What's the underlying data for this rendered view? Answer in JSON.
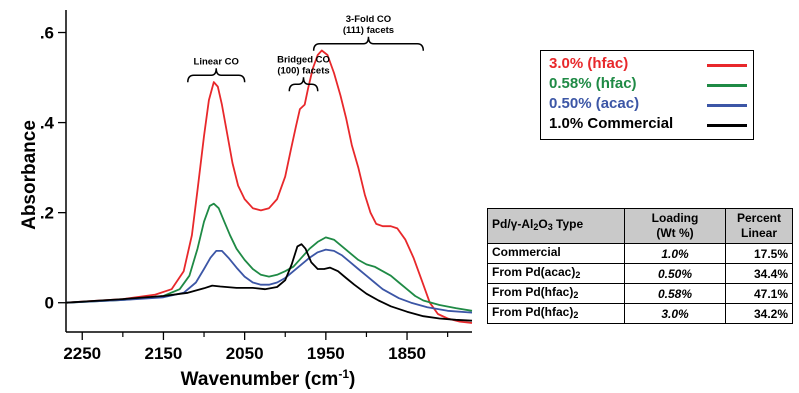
{
  "chart_data": {
    "type": "line",
    "xlabel_main": "Wavenumber (cm",
    "xlabel_sup": "-1",
    "xlabel_end": ")",
    "ylabel": "Absorbance",
    "xlim": [
      2270,
      1770
    ],
    "ylim": [
      -0.065,
      0.65
    ],
    "x_reversed": true,
    "x_ticks": [
      2250,
      2150,
      2050,
      1950,
      1850
    ],
    "x_minor_ticks": [
      2200,
      2100,
      2000,
      1900,
      1800
    ],
    "y_ticks": [
      0,
      0.2,
      0.4,
      0.6
    ],
    "y_tick_labels": [
      "0",
      ".2",
      ".4",
      ".6"
    ],
    "grid": false,
    "annotations": [
      {
        "lines": [
          "Linear CO"
        ],
        "bracket_x": [
          2120,
          2050
        ],
        "bracket_y": 0.505
      },
      {
        "lines": [
          "Bridged CO",
          "(100) facets"
        ],
        "bracket_x": [
          1995,
          1960
        ],
        "bracket_y": 0.485
      },
      {
        "lines": [
          "3-Fold CO",
          "(111) facets"
        ],
        "bracket_x": [
          1965,
          1830
        ],
        "bracket_y": 0.575
      }
    ],
    "series": [
      {
        "name": "3.0% (hfac)",
        "color": "#e8282b",
        "points": [
          [
            2270,
            0.0
          ],
          [
            2200,
            0.008
          ],
          [
            2160,
            0.018
          ],
          [
            2140,
            0.03
          ],
          [
            2125,
            0.07
          ],
          [
            2115,
            0.15
          ],
          [
            2108,
            0.25
          ],
          [
            2100,
            0.37
          ],
          [
            2094,
            0.45
          ],
          [
            2088,
            0.49
          ],
          [
            2083,
            0.48
          ],
          [
            2078,
            0.44
          ],
          [
            2072,
            0.38
          ],
          [
            2065,
            0.31
          ],
          [
            2058,
            0.26
          ],
          [
            2050,
            0.23
          ],
          [
            2040,
            0.21
          ],
          [
            2030,
            0.205
          ],
          [
            2020,
            0.21
          ],
          [
            2010,
            0.23
          ],
          [
            2000,
            0.28
          ],
          [
            1993,
            0.34
          ],
          [
            1987,
            0.39
          ],
          [
            1982,
            0.43
          ],
          [
            1976,
            0.44
          ],
          [
            1972,
            0.475
          ],
          [
            1966,
            0.52
          ],
          [
            1960,
            0.55
          ],
          [
            1955,
            0.56
          ],
          [
            1948,
            0.55
          ],
          [
            1940,
            0.51
          ],
          [
            1932,
            0.46
          ],
          [
            1925,
            0.41
          ],
          [
            1918,
            0.35
          ],
          [
            1910,
            0.3
          ],
          [
            1902,
            0.24
          ],
          [
            1895,
            0.2
          ],
          [
            1888,
            0.175
          ],
          [
            1880,
            0.17
          ],
          [
            1870,
            0.17
          ],
          [
            1862,
            0.165
          ],
          [
            1852,
            0.14
          ],
          [
            1842,
            0.1
          ],
          [
            1832,
            0.05
          ],
          [
            1822,
            0.0
          ],
          [
            1812,
            -0.025
          ],
          [
            1800,
            -0.035
          ],
          [
            1785,
            -0.042
          ],
          [
            1770,
            -0.045
          ]
        ]
      },
      {
        "name": "0.58% (hfac)",
        "color": "#1f8a45",
        "points": [
          [
            2270,
            0.0
          ],
          [
            2200,
            0.006
          ],
          [
            2150,
            0.015
          ],
          [
            2130,
            0.03
          ],
          [
            2118,
            0.06
          ],
          [
            2108,
            0.12
          ],
          [
            2100,
            0.18
          ],
          [
            2093,
            0.215
          ],
          [
            2088,
            0.22
          ],
          [
            2082,
            0.21
          ],
          [
            2075,
            0.18
          ],
          [
            2068,
            0.15
          ],
          [
            2060,
            0.12
          ],
          [
            2050,
            0.095
          ],
          [
            2040,
            0.075
          ],
          [
            2030,
            0.062
          ],
          [
            2020,
            0.058
          ],
          [
            2010,
            0.062
          ],
          [
            2000,
            0.07
          ],
          [
            1990,
            0.08
          ],
          [
            1980,
            0.1
          ],
          [
            1970,
            0.12
          ],
          [
            1960,
            0.135
          ],
          [
            1950,
            0.145
          ],
          [
            1940,
            0.14
          ],
          [
            1930,
            0.125
          ],
          [
            1920,
            0.11
          ],
          [
            1910,
            0.095
          ],
          [
            1900,
            0.085
          ],
          [
            1890,
            0.08
          ],
          [
            1880,
            0.07
          ],
          [
            1870,
            0.06
          ],
          [
            1860,
            0.045
          ],
          [
            1850,
            0.03
          ],
          [
            1840,
            0.015
          ],
          [
            1830,
            0.005
          ],
          [
            1810,
            -0.005
          ],
          [
            1790,
            -0.012
          ],
          [
            1770,
            -0.018
          ]
        ]
      },
      {
        "name": "0.50% (acac)",
        "color": "#3c56a6",
        "points": [
          [
            2270,
            0.0
          ],
          [
            2200,
            0.006
          ],
          [
            2150,
            0.012
          ],
          [
            2125,
            0.022
          ],
          [
            2110,
            0.045
          ],
          [
            2100,
            0.075
          ],
          [
            2092,
            0.1
          ],
          [
            2085,
            0.115
          ],
          [
            2078,
            0.115
          ],
          [
            2070,
            0.1
          ],
          [
            2060,
            0.078
          ],
          [
            2050,
            0.058
          ],
          [
            2040,
            0.045
          ],
          [
            2030,
            0.04
          ],
          [
            2020,
            0.04
          ],
          [
            2010,
            0.045
          ],
          [
            2000,
            0.055
          ],
          [
            1990,
            0.07
          ],
          [
            1980,
            0.085
          ],
          [
            1970,
            0.1
          ],
          [
            1960,
            0.112
          ],
          [
            1950,
            0.118
          ],
          [
            1940,
            0.115
          ],
          [
            1930,
            0.105
          ],
          [
            1920,
            0.09
          ],
          [
            1910,
            0.075
          ],
          [
            1900,
            0.06
          ],
          [
            1890,
            0.045
          ],
          [
            1880,
            0.03
          ],
          [
            1870,
            0.02
          ],
          [
            1860,
            0.01
          ],
          [
            1845,
            0.0
          ],
          [
            1825,
            -0.01
          ],
          [
            1800,
            -0.018
          ],
          [
            1770,
            -0.022
          ]
        ]
      },
      {
        "name": "1.0% Commercial",
        "color": "#000000",
        "points": [
          [
            2270,
            0.0
          ],
          [
            2200,
            0.008
          ],
          [
            2150,
            0.015
          ],
          [
            2120,
            0.022
          ],
          [
            2100,
            0.032
          ],
          [
            2090,
            0.038
          ],
          [
            2080,
            0.036
          ],
          [
            2060,
            0.033
          ],
          [
            2040,
            0.033
          ],
          [
            2025,
            0.03
          ],
          [
            2010,
            0.035
          ],
          [
            2000,
            0.05
          ],
          [
            1992,
            0.085
          ],
          [
            1985,
            0.125
          ],
          [
            1980,
            0.13
          ],
          [
            1975,
            0.12
          ],
          [
            1968,
            0.09
          ],
          [
            1960,
            0.075
          ],
          [
            1952,
            0.075
          ],
          [
            1945,
            0.078
          ],
          [
            1935,
            0.07
          ],
          [
            1925,
            0.055
          ],
          [
            1915,
            0.04
          ],
          [
            1900,
            0.02
          ],
          [
            1885,
            0.005
          ],
          [
            1870,
            -0.008
          ],
          [
            1850,
            -0.02
          ],
          [
            1830,
            -0.03
          ],
          [
            1810,
            -0.035
          ],
          [
            1790,
            -0.038
          ],
          [
            1770,
            -0.04
          ]
        ]
      }
    ]
  },
  "legend": {
    "items": [
      {
        "label": "3.0% (hfac)",
        "color": "#e8282b"
      },
      {
        "label": "0.58% (hfac)",
        "color": "#1f8a45"
      },
      {
        "label": "0.50% (acac)",
        "color": "#3c56a6"
      },
      {
        "label": "1.0% Commercial",
        "color": "#000000"
      }
    ]
  },
  "table": {
    "header": {
      "type_main": "Pd/γ-Al",
      "type_sub1": "2",
      "type_mid": "O",
      "type_sub2": "3",
      "type_end": " Type",
      "loading_line1": "Loading",
      "loading_line2": "(Wt %)",
      "percent_line1": "Percent",
      "percent_line2": "Linear"
    },
    "rows": [
      {
        "type": "Commercial",
        "type_sub": "",
        "loading": "1.0%",
        "percent": "17.5%"
      },
      {
        "type": "From Pd(acac)",
        "type_sub": "2",
        "loading": "0.50%",
        "percent": "34.4%"
      },
      {
        "type": "From Pd(hfac)",
        "type_sub": "2",
        "loading": "0.58%",
        "percent": "47.1%"
      },
      {
        "type": "From Pd(hfac)",
        "type_sub": "2",
        "loading": "3.0%",
        "percent": "34.2%"
      }
    ]
  }
}
